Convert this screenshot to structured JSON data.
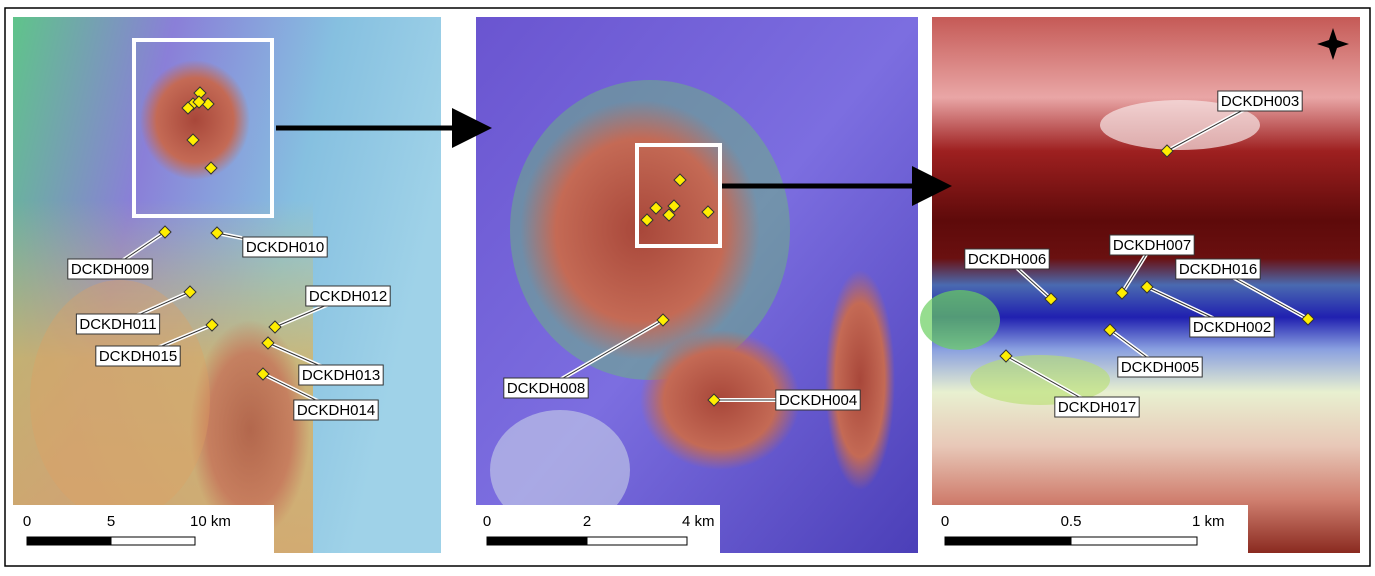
{
  "panels": [
    {
      "labels": [
        "DCKDH009",
        "DCKDH010",
        "DCKDH011",
        "DCKDH012",
        "DCKDH015",
        "DCKDH013",
        "DCKDH014"
      ],
      "scale": [
        "0",
        "5",
        "10 km"
      ]
    },
    {
      "labels": [
        "DCKDH008",
        "DCKDH004"
      ],
      "scale": [
        "0",
        "2",
        "4 km"
      ]
    },
    {
      "labels": [
        "DCKDH003",
        "DCKDH006",
        "DCKDH007",
        "DCKDH016",
        "DCKDH002",
        "DCKDH005",
        "DCKDH017"
      ],
      "scale": [
        "0",
        "0.5",
        "1 km"
      ]
    }
  ]
}
